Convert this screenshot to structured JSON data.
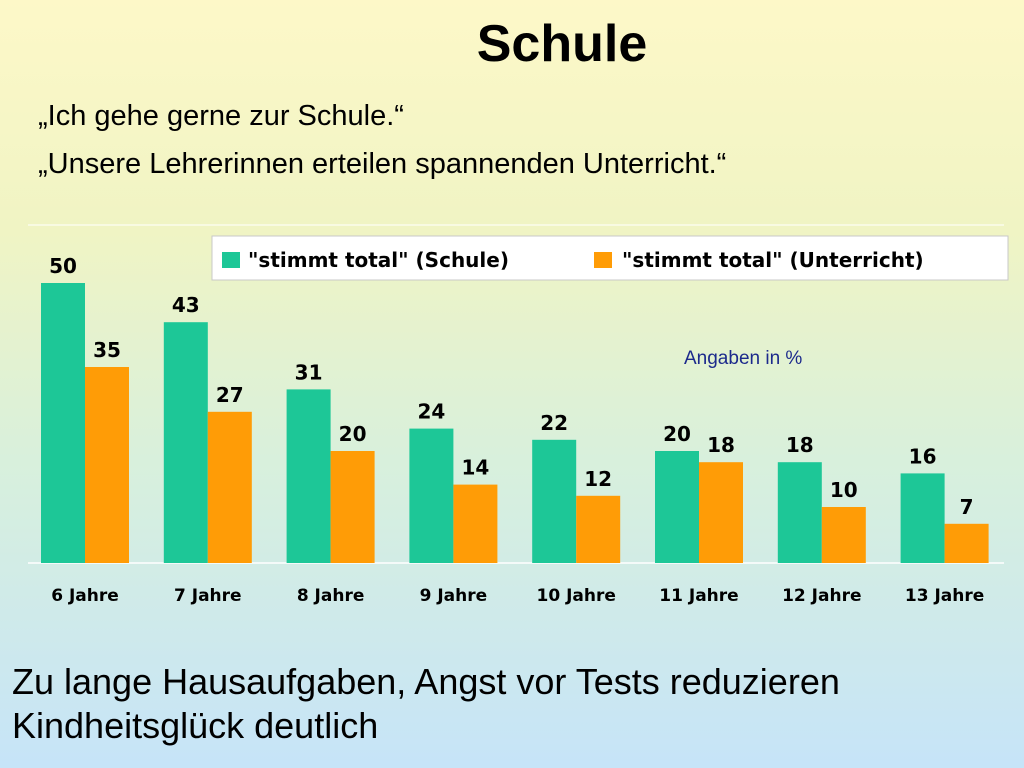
{
  "slide": {
    "title": "Schule",
    "quotes": [
      "„Ich gehe gerne zur Schule.“",
      "„Unsere Lehrerinnen erteilen spannenden Unterricht.“"
    ],
    "footer": "Zu lange Hausaufgaben, Angst vor Tests reduzieren Kindheitsglück deutlich"
  },
  "chart_data": {
    "type": "bar",
    "title": "",
    "xlabel": "",
    "ylabel": "",
    "categories": [
      "6 Jahre",
      "7 Jahre",
      "8 Jahre",
      "9 Jahre",
      "10 Jahre",
      "11 Jahre",
      "12 Jahre",
      "13 Jahre"
    ],
    "series": [
      {
        "name": "\"stimmt total\" (Schule)",
        "color": "#1dc797",
        "values": [
          50,
          43,
          31,
          24,
          22,
          20,
          18,
          16
        ]
      },
      {
        "name": "\"stimmt total\" (Unterricht)",
        "color": "#ff9c06",
        "values": [
          35,
          27,
          20,
          14,
          12,
          18,
          10,
          7
        ]
      }
    ],
    "annotation": "Angaben in %",
    "annotation_color": "#1c2a8c",
    "ylim": [
      0,
      50
    ],
    "grid": false,
    "legend": "top-right",
    "data_labels": true
  }
}
